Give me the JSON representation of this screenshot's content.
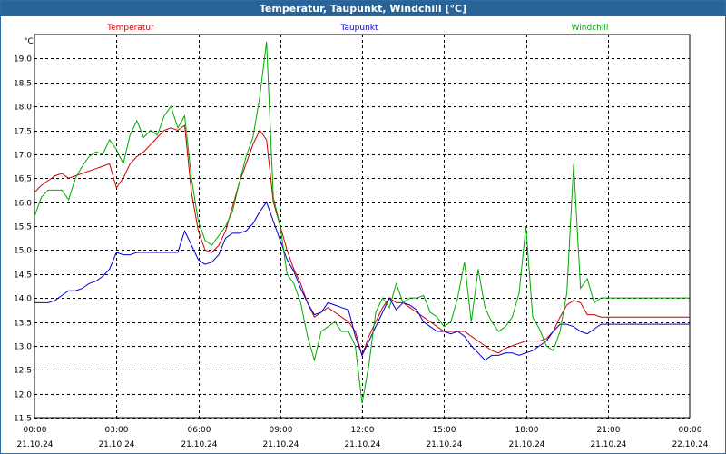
{
  "title": "Temperatur, Taupunkt, Windchill [°C]",
  "chart_data": {
    "type": "line",
    "title": "Temperatur, Taupunkt, Windchill [°C]",
    "ylabel": "°C",
    "xlabel": "",
    "ylim": [
      11.5,
      19.5
    ],
    "yticks": [
      "11,5",
      "12,0",
      "12,5",
      "13,0",
      "13,5",
      "14,0",
      "14,5",
      "15,0",
      "15,5",
      "16,0",
      "16,5",
      "17,0",
      "17,5",
      "18,0",
      "18,5",
      "19,0"
    ],
    "xtick_times": [
      "00:00",
      "03:00",
      "06:00",
      "09:00",
      "12:00",
      "15:00",
      "18:00",
      "21:00",
      "00:00"
    ],
    "xtick_dates": [
      "21.10.24",
      "21.10.24",
      "21.10.24",
      "21.10.24",
      "21.10.24",
      "21.10.24",
      "21.10.24",
      "21.10.24",
      "22.10.24"
    ],
    "grid": true,
    "legend": "top",
    "x": [
      0,
      0.25,
      0.5,
      0.75,
      1,
      1.25,
      1.5,
      1.75,
      2,
      2.25,
      2.5,
      2.75,
      3,
      3.25,
      3.5,
      3.75,
      4,
      4.25,
      4.5,
      4.75,
      5,
      5.25,
      5.5,
      5.75,
      6,
      6.25,
      6.5,
      6.75,
      7,
      7.25,
      7.5,
      7.75,
      8,
      8.25,
      8.5,
      8.75,
      9,
      9.25,
      9.5,
      9.75,
      10,
      10.25,
      10.5,
      10.75,
      11,
      11.25,
      11.5,
      11.75,
      12,
      12.25,
      12.5,
      12.75,
      13,
      13.25,
      13.5,
      13.75,
      14,
      14.25,
      14.5,
      14.75,
      15,
      15.25,
      15.5,
      15.75,
      16,
      16.25,
      16.5,
      16.75,
      17,
      17.25,
      17.5,
      17.75,
      18,
      18.25,
      18.5,
      18.75,
      19,
      19.25,
      19.5,
      19.75,
      20,
      20.25,
      20.5,
      20.75,
      21,
      21.25,
      21.5,
      21.75,
      22,
      22.25,
      22.5,
      22.75,
      23,
      23.25,
      23.5,
      23.75,
      24
    ],
    "series": [
      {
        "name": "Temperatur",
        "color": "#cc0000",
        "values": [
          16.2,
          16.35,
          16.45,
          16.55,
          16.6,
          16.5,
          16.55,
          16.6,
          16.65,
          16.7,
          16.75,
          16.8,
          16.3,
          16.5,
          16.8,
          16.95,
          17.05,
          17.2,
          17.35,
          17.5,
          17.55,
          17.5,
          17.6,
          16.2,
          15.4,
          15.0,
          14.95,
          15.1,
          15.4,
          15.9,
          16.4,
          16.8,
          17.2,
          17.5,
          17.3,
          16.0,
          15.5,
          15.0,
          14.6,
          14.3,
          13.9,
          13.6,
          13.7,
          13.8,
          13.7,
          13.6,
          13.5,
          13.3,
          12.8,
          13.2,
          13.5,
          13.8,
          14.0,
          13.9,
          13.9,
          13.8,
          13.7,
          13.6,
          13.5,
          13.4,
          13.3,
          13.3,
          13.3,
          13.3,
          13.2,
          13.1,
          13.0,
          12.9,
          12.85,
          12.95,
          13.0,
          13.05,
          13.1,
          13.1,
          13.1,
          13.15,
          13.3,
          13.6,
          13.85,
          13.95,
          13.9,
          13.65,
          13.65,
          13.6,
          13.6,
          13.6,
          13.6,
          13.6,
          13.6,
          13.6,
          13.6,
          13.6,
          13.6,
          13.6,
          13.6,
          13.6,
          13.6
        ]
      },
      {
        "name": "Taupunkt",
        "color": "#0000cc",
        "values": [
          13.9,
          13.9,
          13.9,
          13.95,
          14.05,
          14.15,
          14.15,
          14.2,
          14.3,
          14.35,
          14.45,
          14.6,
          14.95,
          14.9,
          14.9,
          14.95,
          14.95,
          14.95,
          14.95,
          14.95,
          14.95,
          14.95,
          15.4,
          15.1,
          14.8,
          14.7,
          14.75,
          14.9,
          15.25,
          15.35,
          15.35,
          15.4,
          15.55,
          15.8,
          16.0,
          15.6,
          15.2,
          14.8,
          14.55,
          14.2,
          13.9,
          13.65,
          13.7,
          13.9,
          13.85,
          13.8,
          13.75,
          13.2,
          12.8,
          13.1,
          13.4,
          13.7,
          14.0,
          13.75,
          13.9,
          13.85,
          13.75,
          13.5,
          13.4,
          13.3,
          13.3,
          13.25,
          13.3,
          13.2,
          13.0,
          12.85,
          12.7,
          12.8,
          12.8,
          12.85,
          12.85,
          12.8,
          12.85,
          12.9,
          13.0,
          13.1,
          13.3,
          13.45,
          13.45,
          13.4,
          13.3,
          13.25,
          13.35,
          13.45,
          13.45,
          13.45,
          13.45,
          13.45,
          13.45,
          13.45,
          13.45,
          13.45,
          13.45,
          13.45,
          13.45,
          13.45,
          13.45
        ]
      },
      {
        "name": "Windchill",
        "color": "#00aa00",
        "values": [
          15.7,
          16.1,
          16.25,
          16.25,
          16.25,
          16.05,
          16.5,
          16.75,
          16.95,
          17.05,
          17.0,
          17.3,
          17.1,
          16.8,
          17.4,
          17.7,
          17.35,
          17.5,
          17.4,
          17.8,
          18.0,
          17.55,
          17.8,
          16.5,
          15.6,
          15.2,
          15.1,
          15.3,
          15.5,
          15.8,
          16.4,
          16.95,
          17.35,
          18.2,
          19.35,
          16.1,
          15.5,
          14.5,
          14.3,
          13.9,
          13.2,
          12.7,
          13.3,
          13.4,
          13.5,
          13.3,
          13.3,
          13.0,
          11.8,
          12.6,
          13.7,
          14.0,
          13.8,
          14.3,
          13.9,
          14.0,
          14.0,
          14.05,
          13.7,
          13.6,
          13.4,
          13.5,
          14.0,
          14.75,
          13.5,
          14.6,
          13.8,
          13.5,
          13.3,
          13.4,
          13.6,
          14.1,
          15.5,
          13.6,
          13.35,
          13.0,
          12.9,
          13.3,
          14.1,
          16.8,
          14.2,
          14.4,
          13.9,
          14.0,
          14.0,
          14.0,
          14.0,
          14.0,
          14.0,
          14.0,
          14.0,
          14.0,
          14.0,
          14.0,
          14.0,
          14.0,
          14.0
        ]
      }
    ]
  }
}
